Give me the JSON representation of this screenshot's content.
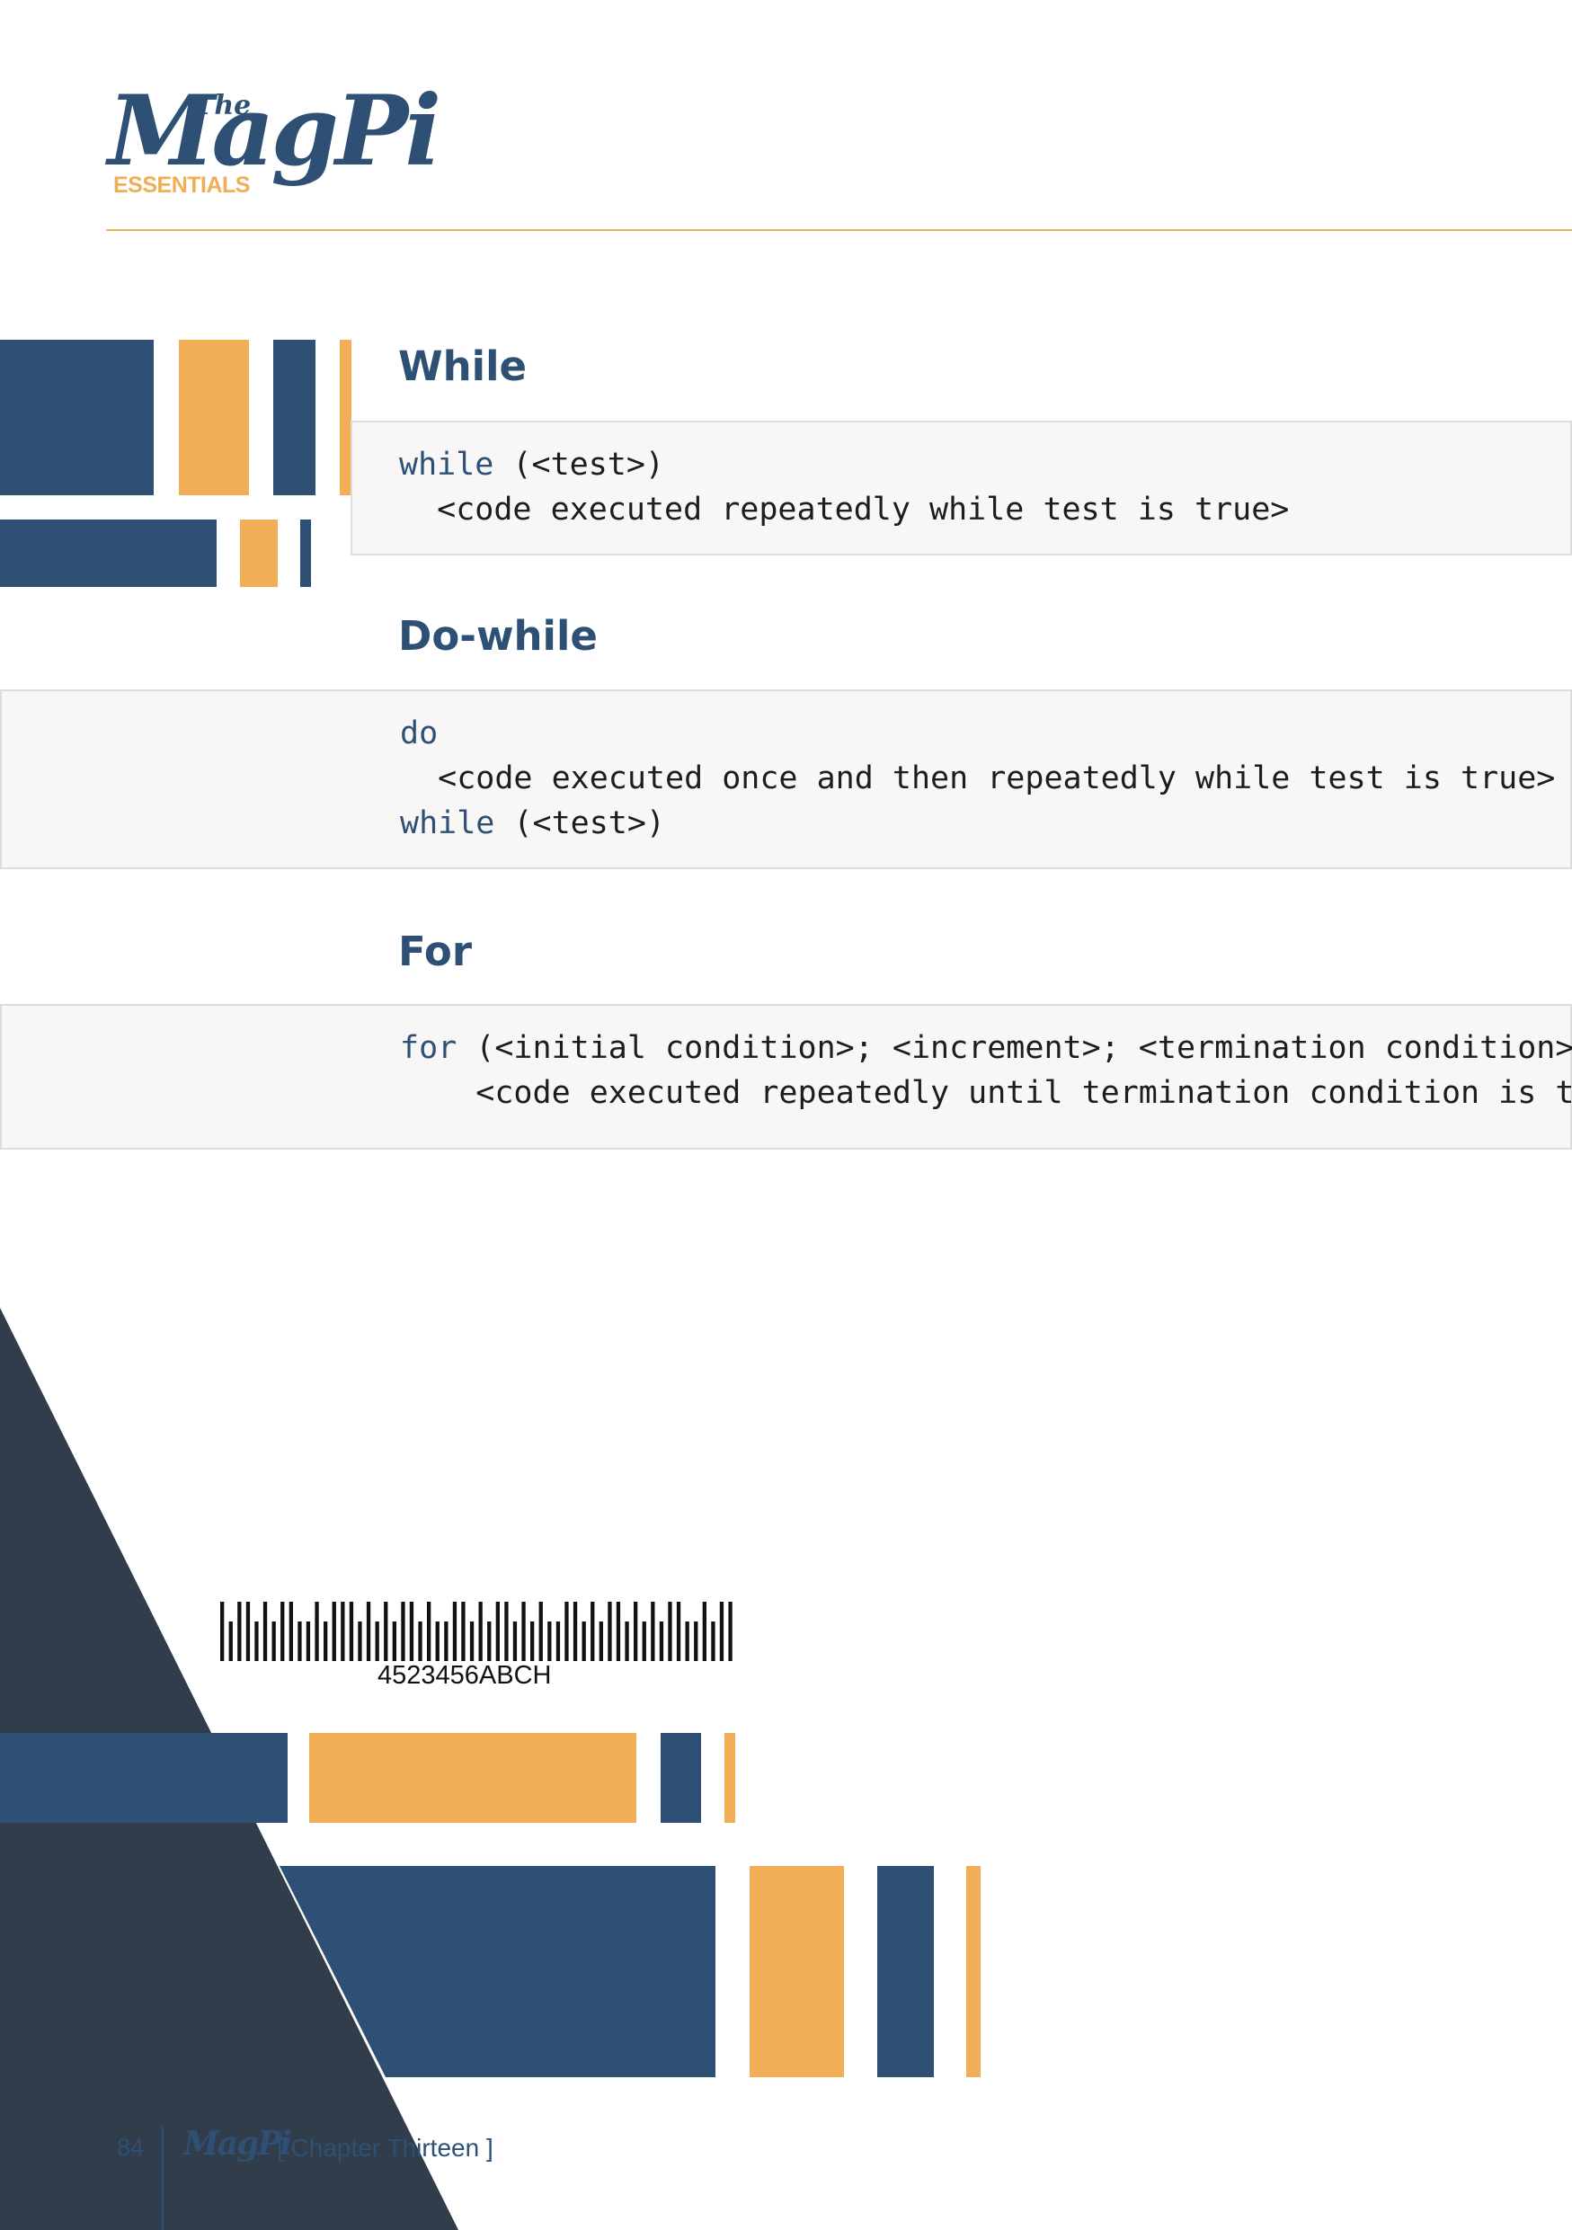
{
  "logo": {
    "the": "The",
    "name": "MagPi",
    "subtitle": "ESSENTIALS"
  },
  "sections": {
    "while": {
      "title": "While",
      "lines": [
        {
          "kw": "while",
          "rest": " (<test>)"
        },
        {
          "kw": "",
          "rest": "  <code executed repeatedly while test is true>"
        }
      ]
    },
    "do_while": {
      "title": "Do-while",
      "lines": [
        {
          "kw": "do",
          "rest": ""
        },
        {
          "kw": "",
          "rest": "  <code executed once and then repeatedly while test is true>"
        },
        {
          "kw": "while",
          "rest": " (<test>)"
        }
      ]
    },
    "for": {
      "title": "For",
      "lines": [
        {
          "kw": "for",
          "rest": " (<initial condition>; <increment>; <termination condition>)"
        },
        {
          "kw": "",
          "rest": "    <code executed repeatedly until termination condition is true>"
        }
      ]
    }
  },
  "barcode": {
    "number": "4523456ABCH"
  },
  "footer": {
    "page_number": "84",
    "logo": "MagPi",
    "chapter": "[ Chapter Thirteen ]"
  },
  "colors": {
    "navy": "#2e5075",
    "orange": "#f1ae57",
    "dark_slate": "#323d4b",
    "code_bg": "#f8f6f6"
  }
}
